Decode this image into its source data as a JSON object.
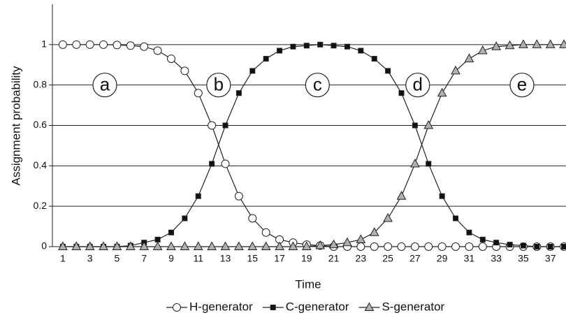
{
  "chart_data": {
    "type": "line",
    "x_label": "Time",
    "y_label": "Assignment probability",
    "x": [
      1,
      2,
      3,
      4,
      5,
      6,
      7,
      8,
      9,
      10,
      11,
      12,
      13,
      14,
      15,
      16,
      17,
      18,
      19,
      20,
      21,
      22,
      23,
      24,
      25,
      26,
      27,
      28,
      29,
      30,
      31,
      32,
      33,
      34,
      35,
      36,
      37,
      38
    ],
    "xlim": [
      0.23,
      38.15
    ],
    "xticks": [
      1,
      3,
      5,
      7,
      9,
      11,
      13,
      15,
      17,
      19,
      21,
      23,
      25,
      27,
      29,
      31,
      33,
      35,
      37
    ],
    "ylim": [
      0,
      1.2
    ],
    "yticks": [
      0,
      0.2,
      0.4,
      0.6,
      0.8,
      1
    ],
    "grid": true,
    "legend": "bottom",
    "series": [
      {
        "name": "H-generator",
        "color": "#ffffff",
        "marker": "circle",
        "values": [
          1,
          1,
          1,
          1,
          0.998,
          0.995,
          0.99,
          0.97,
          0.93,
          0.87,
          0.76,
          0.6,
          0.41,
          0.25,
          0.14,
          0.07,
          0.035,
          0.02,
          0.01,
          0.005,
          0,
          0,
          0,
          0,
          0,
          0,
          0,
          0,
          0,
          0,
          0,
          0,
          0,
          0,
          0,
          0,
          0,
          0
        ]
      },
      {
        "name": "C-generator",
        "color": "#111111",
        "marker": "square",
        "values": [
          0,
          0,
          0,
          0,
          0,
          0.005,
          0.02,
          0.035,
          0.07,
          0.14,
          0.25,
          0.41,
          0.6,
          0.76,
          0.87,
          0.93,
          0.97,
          0.99,
          0.995,
          1,
          0.995,
          0.99,
          0.97,
          0.93,
          0.87,
          0.76,
          0.6,
          0.41,
          0.25,
          0.14,
          0.07,
          0.035,
          0.02,
          0.01,
          0.005,
          0,
          0,
          0
        ]
      },
      {
        "name": "S-generator",
        "color": "#b0b0b0",
        "marker": "triangle",
        "values": [
          0,
          0,
          0,
          0,
          0,
          0,
          0,
          0,
          0,
          0,
          0,
          0,
          0,
          0,
          0,
          0,
          0,
          0,
          0,
          0.005,
          0.01,
          0.02,
          0.035,
          0.07,
          0.14,
          0.25,
          0.41,
          0.6,
          0.76,
          0.87,
          0.93,
          0.97,
          0.99,
          0.995,
          1,
          1,
          1,
          1
        ]
      }
    ],
    "annotations": [
      {
        "text": "a",
        "x": 4.1,
        "y": 0.8
      },
      {
        "text": "b",
        "x": 12.5,
        "y": 0.8
      },
      {
        "text": "c",
        "x": 19.8,
        "y": 0.8
      },
      {
        "text": "d",
        "x": 27.2,
        "y": 0.8
      },
      {
        "text": "e",
        "x": 34.9,
        "y": 0.8
      }
    ]
  }
}
